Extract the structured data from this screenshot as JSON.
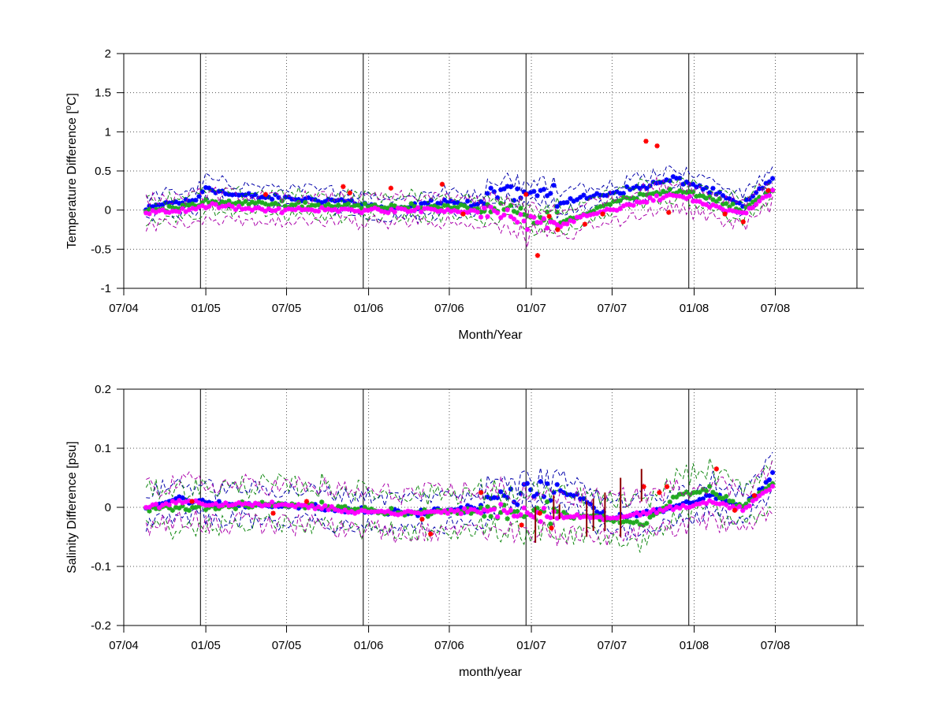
{
  "colors": {
    "blue": "#0000ff",
    "green": "#22aa22",
    "magenta": "#ff00ff",
    "red": "#ff0000",
    "darkred": "#8b0000",
    "navy": "#0000aa",
    "darkgreen": "#118811",
    "purple": "#aa00aa",
    "axis": "#000000",
    "grid": "#555555"
  },
  "chart_data": [
    {
      "type": "scatter",
      "id": "temperature",
      "ylabel_main": "Temperature Difference [",
      "ylabel_sup": "o",
      "ylabel_tail": "C]",
      "xlabel": "Month/Year",
      "xlim": [
        "2004-07-01",
        "2008-12-31"
      ],
      "ylim": [
        -1,
        2
      ],
      "yticks": [
        -1,
        -0.5,
        0,
        0.5,
        1,
        1.5,
        2
      ],
      "ytick_labels": [
        "-1",
        "-0.5",
        "0",
        "0.5",
        "1",
        "1.5",
        "2"
      ],
      "xticks": [
        "2004-07-01",
        "2005-01-01",
        "2005-07-01",
        "2006-01-01",
        "2006-07-01",
        "2007-01-01",
        "2007-07-01",
        "2008-01-01",
        "2008-07-01"
      ],
      "xtick_labels": [
        "07/04",
        "01/05",
        "07/05",
        "01/06",
        "07/06",
        "01/07",
        "07/07",
        "01/08",
        "07/08"
      ],
      "year_lines": [
        "2004-12-20",
        "2005-12-20",
        "2006-12-20",
        "2007-12-20"
      ],
      "grid": true,
      "x_start": "2004-08-20",
      "x_end": "2008-06-25",
      "n_points": 190,
      "series": [
        {
          "color": "blue",
          "offset": 0.12,
          "noise": 0.06,
          "band": 0.1,
          "band_color": "navy",
          "knots": [
            [
              0,
              0
            ],
            [
              5,
              0.08
            ],
            [
              15,
              0.12
            ],
            [
              18,
              0.3
            ],
            [
              25,
              0.2
            ],
            [
              40,
              0.15
            ],
            [
              60,
              0.12
            ],
            [
              75,
              0.0
            ],
            [
              90,
              0.12
            ],
            [
              100,
              0.05
            ],
            [
              110,
              0.3
            ],
            [
              118,
              0.25
            ],
            [
              125,
              0.1
            ],
            [
              140,
              0.22
            ],
            [
              150,
              0.3
            ],
            [
              160,
              0.4
            ],
            [
              170,
              0.25
            ],
            [
              180,
              0.05
            ],
            [
              189,
              0.42
            ]
          ]
        },
        {
          "color": "green",
          "offset": 0.03,
          "noise": 0.05,
          "band": 0.1,
          "band_color": "darkgreen",
          "knots": [
            [
              0,
              -0.02
            ],
            [
              10,
              0.05
            ],
            [
              20,
              0.1
            ],
            [
              40,
              0.08
            ],
            [
              60,
              0.05
            ],
            [
              80,
              0.05
            ],
            [
              100,
              0.02
            ],
            [
              110,
              0.0
            ],
            [
              120,
              -0.15
            ],
            [
              130,
              -0.1
            ],
            [
              140,
              0.1
            ],
            [
              150,
              0.2
            ],
            [
              160,
              0.25
            ],
            [
              170,
              0.15
            ],
            [
              180,
              0.0
            ],
            [
              189,
              0.28
            ]
          ]
        },
        {
          "color": "magenta",
          "offset": -0.02,
          "noise": 0.05,
          "band": 0.12,
          "band_color": "purple",
          "knots": [
            [
              0,
              -0.05
            ],
            [
              10,
              0.0
            ],
            [
              20,
              0.05
            ],
            [
              40,
              0.0
            ],
            [
              60,
              0.0
            ],
            [
              80,
              0.0
            ],
            [
              100,
              -0.02
            ],
            [
              108,
              -0.05
            ],
            [
              115,
              -0.2
            ],
            [
              125,
              -0.18
            ],
            [
              135,
              -0.05
            ],
            [
              150,
              0.1
            ],
            [
              160,
              0.2
            ],
            [
              170,
              0.05
            ],
            [
              180,
              -0.05
            ],
            [
              189,
              0.25
            ]
          ]
        }
      ],
      "red_points": [
        [
          "2005-05-15",
          0.2
        ],
        [
          "2005-11-05",
          0.3
        ],
        [
          "2005-11-20",
          0.22
        ],
        [
          "2006-02-20",
          0.28
        ],
        [
          "2006-06-15",
          0.33
        ],
        [
          "2006-08-01",
          -0.05
        ],
        [
          "2006-12-20",
          0.2
        ],
        [
          "2007-01-15",
          -0.58
        ],
        [
          "2007-02-10",
          -0.08
        ],
        [
          "2007-03-01",
          -0.25
        ],
        [
          "2007-05-01",
          -0.18
        ],
        [
          "2007-06-10",
          -0.05
        ],
        [
          "2007-09-15",
          0.88
        ],
        [
          "2007-10-10",
          0.82
        ],
        [
          "2007-11-05",
          -0.03
        ],
        [
          "2008-03-10",
          -0.05
        ],
        [
          "2008-04-20",
          -0.15
        ],
        [
          "2008-06-15",
          0.25
        ]
      ]
    },
    {
      "type": "scatter",
      "id": "salinity",
      "ylabel_main": "Salinity Difference [psu]",
      "ylabel_sup": "",
      "ylabel_tail": "",
      "xlabel": "month/year",
      "xlim": [
        "2004-07-01",
        "2008-12-31"
      ],
      "ylim": [
        -0.2,
        0.2
      ],
      "yticks": [
        -0.2,
        -0.1,
        0,
        0.1,
        0.2
      ],
      "ytick_labels": [
        "-0.2",
        "-0.1",
        "0",
        "0.1",
        "0.2"
      ],
      "xticks": [
        "2004-07-01",
        "2005-01-01",
        "2005-07-01",
        "2006-01-01",
        "2006-07-01",
        "2007-01-01",
        "2007-07-01",
        "2008-01-01",
        "2008-07-01"
      ],
      "xtick_labels": [
        "07/04",
        "01/05",
        "07/05",
        "01/06",
        "07/06",
        "01/07",
        "07/07",
        "01/08",
        "07/08"
      ],
      "year_lines": [
        "2004-12-20",
        "2005-12-20",
        "2006-12-20",
        "2007-12-20"
      ],
      "grid": true,
      "x_start": "2004-08-20",
      "x_end": "2008-06-25",
      "n_points": 190,
      "series": [
        {
          "color": "blue",
          "offset": 0.0,
          "noise": 0.008,
          "band": 0.02,
          "band_color": "navy",
          "knots": [
            [
              0,
              0.0
            ],
            [
              10,
              0.015
            ],
            [
              20,
              0.005
            ],
            [
              40,
              0.005
            ],
            [
              60,
              -0.005
            ],
            [
              80,
              -0.01
            ],
            [
              100,
              0.0
            ],
            [
              110,
              0.02
            ],
            [
              120,
              0.03
            ],
            [
              130,
              0.02
            ],
            [
              140,
              -0.02
            ],
            [
              150,
              -0.01
            ],
            [
              160,
              0.0
            ],
            [
              170,
              0.02
            ],
            [
              180,
              0.0
            ],
            [
              189,
              0.055
            ]
          ]
        },
        {
          "color": "green",
          "offset": 0.0,
          "noise": 0.008,
          "band": 0.025,
          "band_color": "darkgreen",
          "knots": [
            [
              0,
              0.0
            ],
            [
              20,
              0.0
            ],
            [
              40,
              0.005
            ],
            [
              60,
              0.0
            ],
            [
              80,
              -0.01
            ],
            [
              100,
              -0.005
            ],
            [
              120,
              -0.01
            ],
            [
              140,
              -0.02
            ],
            [
              150,
              -0.03
            ],
            [
              160,
              0.02
            ],
            [
              170,
              0.03
            ],
            [
              180,
              0.0
            ],
            [
              189,
              0.04
            ]
          ]
        },
        {
          "color": "magenta",
          "offset": 0.0,
          "noise": 0.006,
          "band": 0.025,
          "band_color": "purple",
          "knots": [
            [
              0,
              0.0
            ],
            [
              10,
              0.01
            ],
            [
              20,
              0.005
            ],
            [
              40,
              0.005
            ],
            [
              60,
              -0.005
            ],
            [
              80,
              -0.01
            ],
            [
              100,
              -0.005
            ],
            [
              120,
              -0.01
            ],
            [
              140,
              -0.02
            ],
            [
              160,
              0.0
            ],
            [
              170,
              0.01
            ],
            [
              180,
              -0.005
            ],
            [
              189,
              0.035
            ]
          ]
        }
      ],
      "red_points": [
        [
          "2004-12-01",
          0.01
        ],
        [
          "2005-06-01",
          -0.01
        ],
        [
          "2005-08-15",
          0.01
        ],
        [
          "2006-05-01",
          -0.02
        ],
        [
          "2006-05-20",
          -0.045
        ],
        [
          "2006-09-10",
          0.025
        ],
        [
          "2006-12-10",
          -0.03
        ],
        [
          "2007-01-20",
          -0.01
        ],
        [
          "2007-02-15",
          -0.035
        ],
        [
          "2007-09-10",
          0.035
        ],
        [
          "2007-10-15",
          0.025
        ],
        [
          "2007-11-01",
          0.035
        ],
        [
          "2008-02-20",
          0.065
        ],
        [
          "2008-04-01",
          -0.005
        ],
        [
          "2008-05-15",
          0.02
        ]
      ],
      "darkred_bars": [
        [
          "2007-01-10",
          -0.06,
          0.0
        ],
        [
          "2007-02-20",
          -0.02,
          0.02
        ],
        [
          "2007-03-05",
          -0.02,
          0.005
        ],
        [
          "2007-05-05",
          -0.05,
          0.01
        ],
        [
          "2007-05-20",
          -0.04,
          0.015
        ],
        [
          "2007-06-15",
          -0.04,
          0.025
        ],
        [
          "2007-07-20",
          -0.05,
          0.05
        ],
        [
          "2007-09-05",
          0.01,
          0.065
        ]
      ]
    }
  ]
}
